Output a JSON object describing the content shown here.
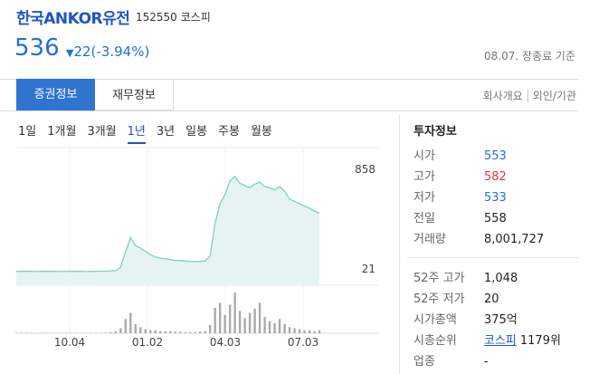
{
  "header": {
    "name": "한국ANKOR유전",
    "code": "152550",
    "market": "코스피"
  },
  "price": {
    "current": "536",
    "arrow": "▼",
    "change": "22(-3.94%)",
    "date": "08.07. 장종료 기준"
  },
  "tabs": [
    "증권정보",
    "재무정보"
  ],
  "links": [
    "회사개요",
    "외인/기관"
  ],
  "periods": [
    "1일",
    "1개월",
    "3개월",
    "1년",
    "3년",
    "일봉",
    "주봉",
    "월봉"
  ],
  "active_period": 3,
  "chart": {
    "ylim": [
      21,
      858
    ],
    "yticks": [
      858,
      21
    ],
    "xlabels": [
      "10.04",
      "01.02",
      "04.03",
      "07.03"
    ],
    "prices": [
      24,
      23,
      25,
      24,
      22,
      23,
      25,
      24,
      23,
      22,
      24,
      25,
      23,
      24,
      22,
      23,
      24,
      25,
      26,
      28,
      30,
      60,
      200,
      320,
      250,
      230,
      200,
      170,
      150,
      140,
      135,
      128,
      120,
      118,
      115,
      112,
      110,
      112,
      115,
      160,
      450,
      620,
      700,
      820,
      858,
      800,
      780,
      760,
      790,
      810,
      770,
      760,
      740,
      770,
      730,
      660,
      640,
      620,
      600,
      580,
      555,
      536
    ],
    "volume_lim": [
      0,
      40
    ],
    "volumes": [
      0.5,
      0.3,
      0.4,
      0.3,
      0.2,
      0.3,
      0.4,
      0.3,
      0.2,
      0.3,
      0.3,
      0.4,
      0.3,
      0.2,
      0.3,
      0.3,
      0.2,
      0.4,
      0.6,
      1,
      2,
      5,
      14,
      20,
      9,
      6,
      4,
      3,
      3,
      2,
      2,
      2,
      1.5,
      1.5,
      1,
      1,
      1,
      1.5,
      2,
      8,
      25,
      30,
      18,
      28,
      40,
      22,
      15,
      20,
      24,
      30,
      16,
      12,
      10,
      14,
      9,
      6,
      5,
      4,
      3,
      3,
      2,
      3
    ]
  },
  "info": {
    "title": "투자정보",
    "rows": [
      {
        "label": "시가",
        "value": "553"
      },
      {
        "label": "고가",
        "value": "582"
      },
      {
        "label": "저가",
        "value": "533"
      },
      {
        "label": "전일",
        "value": "558"
      },
      {
        "label": "거래량",
        "value": "8,001,727"
      }
    ],
    "rows2": [
      {
        "label": "52주 고가",
        "value": "1,048"
      },
      {
        "label": "52주 저가",
        "value": "20"
      },
      {
        "label": "시가총액",
        "value": "375억"
      },
      {
        "label": "시총순위",
        "value": "코스피",
        "rank": "1179위"
      },
      {
        "label": "업종",
        "value": "-"
      }
    ]
  }
}
